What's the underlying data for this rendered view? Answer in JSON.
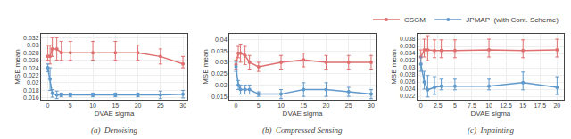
{
  "chart_data": [
    {
      "type": "line",
      "title": "(a)  Denoising",
      "x_label": "DVAE sigma",
      "y_label": "MSE mean",
      "xlim": [
        -1.5,
        31
      ],
      "ylim": [
        0.0155,
        0.033
      ],
      "xticks": [
        0,
        5,
        10,
        15,
        20,
        25,
        30
      ],
      "yticks": [
        0.016,
        0.018,
        0.02,
        0.022,
        0.024,
        0.026,
        0.028,
        0.03,
        0.032
      ],
      "grid": true,
      "legend": "top",
      "marker": "circle",
      "x": [
        0.0,
        0.5,
        1.0,
        2.0,
        3.0,
        5.0,
        10.0,
        15.0,
        20.0,
        25.0,
        30.0
      ],
      "series": [
        {
          "name": "CSGM",
          "color": "#E07070",
          "values": [
            0.027,
            0.027,
            0.029,
            0.029,
            0.028,
            0.028,
            0.028,
            0.028,
            0.028,
            0.027,
            0.025
          ],
          "error_minus": [
            0.001,
            0.002,
            0.002,
            0.003,
            0.002,
            0.002,
            0.002,
            0.002,
            0.002,
            0.002,
            0.001
          ],
          "error_plus": [
            0.003,
            0.003,
            0.003,
            0.003,
            0.003,
            0.003,
            0.003,
            0.003,
            0.002,
            0.002,
            0.002
          ]
        },
        {
          "name": "JPMAP  (with Cont. Scheme)",
          "color": "#6099CC",
          "values": [
            0.024,
            0.021,
            0.0172,
            0.0168,
            0.0168,
            0.0168,
            0.0168,
            0.0168,
            0.0168,
            0.0168,
            0.017
          ],
          "error_minus": [
            0.001,
            0.003,
            0.001,
            0.001,
            0.0005,
            0.0005,
            0.0005,
            0.0005,
            0.0005,
            0.001,
            0.001
          ],
          "error_plus": [
            0.001,
            0.003,
            0.001,
            0.001,
            0.0005,
            0.0005,
            0.0005,
            0.0005,
            0.0005,
            0.001,
            0.001
          ]
        }
      ]
    },
    {
      "type": "line",
      "title": "(b)  Compressed Sensing",
      "x_label": "DVAE sigma",
      "y_label": "MSE mean",
      "xlim": [
        -1.5,
        31
      ],
      "ylim": [
        0.0135,
        0.0425
      ],
      "xticks": [
        0,
        5,
        10,
        15,
        20,
        25,
        30
      ],
      "yticks": [
        0.015,
        0.02,
        0.025,
        0.03,
        0.035,
        0.04
      ],
      "grid": true,
      "legend": "top",
      "marker": "circle",
      "x": [
        0.0,
        0.5,
        1.0,
        2.0,
        3.0,
        5.0,
        10.0,
        15.0,
        20.0,
        25.0,
        30.0
      ],
      "series": [
        {
          "name": "CSGM",
          "color": "#E07070",
          "values": [
            0.029,
            0.034,
            0.034,
            0.033,
            0.03,
            0.028,
            0.03,
            0.031,
            0.03,
            0.03,
            0.03
          ],
          "error_minus": [
            0.002,
            0.002,
            0.004,
            0.004,
            0.003,
            0.002,
            0.003,
            0.003,
            0.003,
            0.003,
            0.003
          ],
          "error_plus": [
            0.002,
            0.003,
            0.004,
            0.004,
            0.003,
            0.002,
            0.003,
            0.003,
            0.003,
            0.003,
            0.003
          ]
        },
        {
          "name": "JPMAP  (with Cont. Scheme)",
          "color": "#6099CC",
          "values": [
            0.028,
            0.02,
            0.018,
            0.018,
            0.018,
            0.016,
            0.016,
            0.018,
            0.018,
            0.017,
            0.016
          ],
          "error_minus": [
            0.002,
            0.002,
            0.002,
            0.002,
            0.002,
            0.001,
            0.002,
            0.003,
            0.003,
            0.002,
            0.002
          ],
          "error_plus": [
            0.002,
            0.002,
            0.002,
            0.002,
            0.002,
            0.001,
            0.002,
            0.003,
            0.003,
            0.002,
            0.002
          ]
        }
      ]
    },
    {
      "type": "line",
      "title": "(c)  Inpainting",
      "x_label": "DVAE sigma",
      "y_label": "MSE mean",
      "xlim": [
        -0.5,
        21
      ],
      "ylim": [
        0.021,
        0.0395
      ],
      "xticks": [
        0,
        2.5,
        5,
        7.5,
        10,
        12.5,
        15,
        17.5,
        20
      ],
      "yticks": [
        0.022,
        0.024,
        0.026,
        0.028,
        0.03,
        0.032,
        0.034,
        0.036,
        0.038
      ],
      "grid": true,
      "legend": "top",
      "marker": "circle",
      "x": [
        0.0,
        0.5,
        1.0,
        2.0,
        3.0,
        5.0,
        10.0,
        15.0,
        20.0
      ],
      "series": [
        {
          "name": "CSGM",
          "color": "#E07070",
          "values": [
            0.033,
            0.035,
            0.035,
            0.0348,
            0.0348,
            0.0348,
            0.035,
            0.0348,
            0.035
          ],
          "error_minus": [
            0.002,
            0.002,
            0.003,
            0.002,
            0.002,
            0.002,
            0.002,
            0.002,
            0.002
          ],
          "error_plus": [
            0.002,
            0.003,
            0.004,
            0.003,
            0.003,
            0.003,
            0.003,
            0.003,
            0.003
          ]
        },
        {
          "name": "JPMAP  (with Cont. Scheme)",
          "color": "#6099CC",
          "values": [
            0.031,
            0.026,
            0.0238,
            0.0245,
            0.0248,
            0.0248,
            0.0248,
            0.0258,
            0.0245
          ],
          "error_minus": [
            0.002,
            0.002,
            0.002,
            0.002,
            0.001,
            0.001,
            0.001,
            0.002,
            0.002
          ],
          "error_plus": [
            0.002,
            0.003,
            0.004,
            0.003,
            0.002,
            0.002,
            0.002,
            0.003,
            0.003
          ]
        }
      ]
    }
  ]
}
